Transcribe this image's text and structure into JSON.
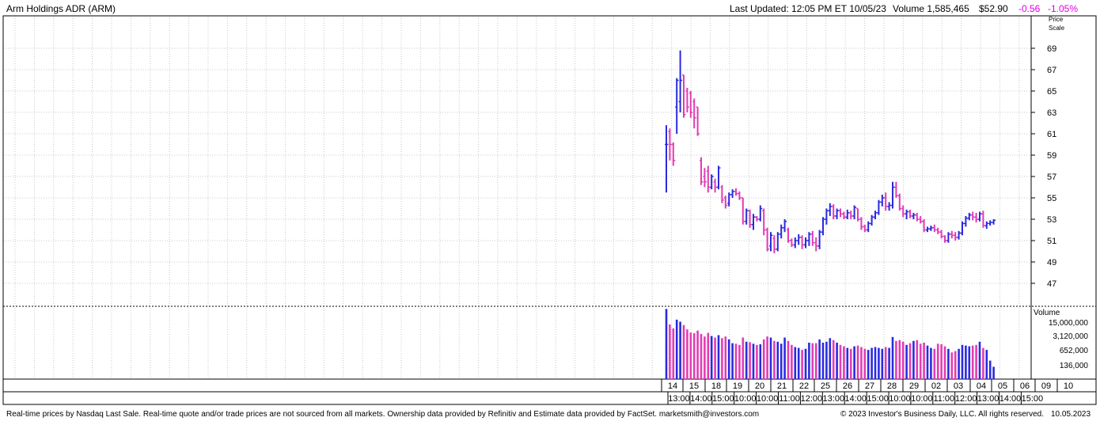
{
  "header": {
    "title": "Arm Holdings ADR  (ARM)",
    "last_updated": "Last Updated: 12:05 PM ET 10/05/23",
    "volume": "Volume 1,585,465",
    "price": "$52.90",
    "change": "-0.56",
    "change_pct": "-1.05%"
  },
  "price_scale_label": [
    "Price",
    "Scale"
  ],
  "volume_label": "Volume",
  "footer": {
    "left": "Real-time prices by Nasdaq Last Sale. Real-time quote and/or trade prices are not sourced from all markets. Ownership data provided by Refinitiv and Estimate data provided by FactSet. marketsmith@investors.com",
    "right": "© 2023 Investor's Business Daily, LLC. All rights reserved.",
    "date": "10.05.2023"
  },
  "colors": {
    "up": "#2a2ae0",
    "down": "#e23cb4",
    "grid": "#c8c8c8",
    "change_negative": "#e000e0"
  },
  "chart_data": {
    "type": "bar",
    "subtype": "ohlc-intraday",
    "price_ticks": [
      "69",
      "67",
      "65",
      "63",
      "61",
      "59",
      "57",
      "55",
      "53",
      "51",
      "49",
      "47"
    ],
    "price_range": [
      45,
      72
    ],
    "volume_ticks": [
      "15,000,000",
      "3,120,000",
      "652,000",
      "136,000"
    ],
    "volume_scale": "log",
    "volume_range": [
      15000,
      45000000
    ],
    "date_labels": [
      "14",
      "15",
      "18",
      "19",
      "20",
      "21",
      "22",
      "25",
      "26",
      "27",
      "28",
      "29",
      "02",
      "03",
      "04",
      "05",
      "06",
      "09",
      "10"
    ],
    "time_labels": [
      "13:00",
      "14:00",
      "15:00",
      "10:00",
      "10:00",
      "11:00",
      "12:00",
      "13:00",
      "14:00",
      "15:00",
      "10:00",
      "10:00",
      "11:00",
      "12:00",
      "13:00",
      "14:00",
      "15:00"
    ],
    "bars": [
      {
        "o": 60.0,
        "h": 61.8,
        "l": 55.5,
        "c": 60.0,
        "v": 40000000
      },
      {
        "o": 61.2,
        "h": 61.5,
        "l": 58.5,
        "c": 60.0,
        "v": 7000000
      },
      {
        "o": 60.0,
        "h": 60.2,
        "l": 58.0,
        "c": 58.5,
        "v": 4500000
      },
      {
        "o": 63.5,
        "h": 66.2,
        "l": 61.0,
        "c": 66.0,
        "v": 12000000
      },
      {
        "o": 64.0,
        "h": 68.8,
        "l": 63.0,
        "c": 66.0,
        "v": 9500000
      },
      {
        "o": 66.5,
        "h": 66.5,
        "l": 62.5,
        "c": 62.8,
        "v": 6500000
      },
      {
        "o": 65.0,
        "h": 65.3,
        "l": 63.0,
        "c": 63.5,
        "v": 4000000
      },
      {
        "o": 64.8,
        "h": 65.0,
        "l": 62.5,
        "c": 63.0,
        "v": 2800000
      },
      {
        "o": 64.0,
        "h": 64.3,
        "l": 61.5,
        "c": 62.5,
        "v": 2600000
      },
      {
        "o": 63.5,
        "h": 63.5,
        "l": 60.8,
        "c": 61.0,
        "v": 3500000
      },
      {
        "o": 58.5,
        "h": 58.8,
        "l": 56.2,
        "c": 56.5,
        "v": 2400000
      },
      {
        "o": 57.0,
        "h": 57.8,
        "l": 56.0,
        "c": 56.5,
        "v": 1800000
      },
      {
        "o": 57.5,
        "h": 58.0,
        "l": 55.5,
        "c": 56.0,
        "v": 2700000
      },
      {
        "o": 56.0,
        "h": 57.2,
        "l": 55.8,
        "c": 57.0,
        "v": 1900000
      },
      {
        "o": 56.5,
        "h": 56.8,
        "l": 55.5,
        "c": 56.0,
        "v": 1600000
      },
      {
        "o": 56.0,
        "h": 58.0,
        "l": 55.8,
        "c": 57.8,
        "v": 2100000
      },
      {
        "o": 56.0,
        "h": 56.2,
        "l": 54.5,
        "c": 54.8,
        "v": 1500000
      },
      {
        "o": 55.0,
        "h": 55.2,
        "l": 54.0,
        "c": 54.3,
        "v": 1800000
      },
      {
        "o": 54.5,
        "h": 55.5,
        "l": 54.2,
        "c": 55.3,
        "v": 1300000
      },
      {
        "o": 55.3,
        "h": 55.8,
        "l": 55.0,
        "c": 55.6,
        "v": 850000
      },
      {
        "o": 55.6,
        "h": 55.9,
        "l": 55.2,
        "c": 55.4,
        "v": 800000
      },
      {
        "o": 55.4,
        "h": 55.6,
        "l": 54.8,
        "c": 55.0,
        "v": 700000
      },
      {
        "o": 55.0,
        "h": 55.0,
        "l": 52.5,
        "c": 52.8,
        "v": 1600000
      },
      {
        "o": 52.8,
        "h": 54.0,
        "l": 52.5,
        "c": 53.8,
        "v": 1000000
      },
      {
        "o": 53.8,
        "h": 53.9,
        "l": 52.2,
        "c": 52.5,
        "v": 950000
      },
      {
        "o": 52.5,
        "h": 53.5,
        "l": 52.0,
        "c": 53.2,
        "v": 800000
      },
      {
        "o": 53.2,
        "h": 53.3,
        "l": 52.8,
        "c": 53.0,
        "v": 700000
      },
      {
        "o": 53.0,
        "h": 54.3,
        "l": 52.8,
        "c": 54.0,
        "v": 750000
      },
      {
        "o": 53.8,
        "h": 54.0,
        "l": 51.5,
        "c": 52.0,
        "v": 1300000
      },
      {
        "o": 52.0,
        "h": 52.2,
        "l": 50.0,
        "c": 50.2,
        "v": 1800000
      },
      {
        "o": 50.5,
        "h": 51.8,
        "l": 50.0,
        "c": 51.5,
        "v": 1600000
      },
      {
        "o": 51.2,
        "h": 51.5,
        "l": 49.8,
        "c": 50.2,
        "v": 1100000
      },
      {
        "o": 50.2,
        "h": 51.8,
        "l": 50.0,
        "c": 51.6,
        "v": 1000000
      },
      {
        "o": 51.6,
        "h": 52.5,
        "l": 51.2,
        "c": 52.2,
        "v": 800000
      },
      {
        "o": 52.2,
        "h": 53.0,
        "l": 51.8,
        "c": 52.8,
        "v": 1600000
      },
      {
        "o": 52.0,
        "h": 52.2,
        "l": 50.8,
        "c": 51.0,
        "v": 1100000
      },
      {
        "o": 51.0,
        "h": 51.2,
        "l": 50.4,
        "c": 50.6,
        "v": 700000
      },
      {
        "o": 50.6,
        "h": 51.3,
        "l": 50.3,
        "c": 51.0,
        "v": 550000
      },
      {
        "o": 51.0,
        "h": 51.6,
        "l": 50.6,
        "c": 51.3,
        "v": 500000
      },
      {
        "o": 51.3,
        "h": 51.5,
        "l": 50.2,
        "c": 50.6,
        "v": 400000
      },
      {
        "o": 50.6,
        "h": 51.3,
        "l": 50.3,
        "c": 51.0,
        "v": 450000
      },
      {
        "o": 51.0,
        "h": 51.8,
        "l": 50.5,
        "c": 51.6,
        "v": 900000
      },
      {
        "o": 51.6,
        "h": 51.9,
        "l": 50.5,
        "c": 50.8,
        "v": 850000
      },
      {
        "o": 50.8,
        "h": 51.3,
        "l": 50.0,
        "c": 50.5,
        "v": 850000
      },
      {
        "o": 50.5,
        "h": 52.0,
        "l": 50.2,
        "c": 51.8,
        "v": 1300000
      },
      {
        "o": 51.8,
        "h": 53.2,
        "l": 51.5,
        "c": 53.0,
        "v": 900000
      },
      {
        "o": 53.0,
        "h": 54.0,
        "l": 52.5,
        "c": 53.8,
        "v": 1000000
      },
      {
        "o": 53.8,
        "h": 54.5,
        "l": 53.3,
        "c": 54.2,
        "v": 1500000
      },
      {
        "o": 54.2,
        "h": 54.4,
        "l": 53.0,
        "c": 53.3,
        "v": 1200000
      },
      {
        "o": 53.3,
        "h": 54.0,
        "l": 53.0,
        "c": 53.8,
        "v": 900000
      },
      {
        "o": 53.8,
        "h": 54.0,
        "l": 53.2,
        "c": 53.5,
        "v": 700000
      },
      {
        "o": 53.5,
        "h": 53.7,
        "l": 53.0,
        "c": 53.2,
        "v": 600000
      },
      {
        "o": 53.2,
        "h": 53.9,
        "l": 53.0,
        "c": 53.6,
        "v": 500000
      },
      {
        "o": 53.6,
        "h": 53.8,
        "l": 53.0,
        "c": 53.3,
        "v": 450000
      },
      {
        "o": 53.3,
        "h": 54.3,
        "l": 53.0,
        "c": 54.1,
        "v": 600000
      },
      {
        "o": 54.0,
        "h": 54.0,
        "l": 52.8,
        "c": 53.0,
        "v": 650000
      },
      {
        "o": 53.0,
        "h": 53.2,
        "l": 52.0,
        "c": 52.3,
        "v": 550000
      },
      {
        "o": 52.3,
        "h": 52.5,
        "l": 51.8,
        "c": 52.0,
        "v": 450000
      },
      {
        "o": 52.0,
        "h": 52.8,
        "l": 51.8,
        "c": 52.6,
        "v": 400000
      },
      {
        "o": 52.6,
        "h": 53.4,
        "l": 52.4,
        "c": 53.2,
        "v": 500000
      },
      {
        "o": 53.2,
        "h": 53.8,
        "l": 53.0,
        "c": 53.6,
        "v": 550000
      },
      {
        "o": 53.6,
        "h": 54.8,
        "l": 53.4,
        "c": 54.6,
        "v": 500000
      },
      {
        "o": 54.6,
        "h": 55.3,
        "l": 54.2,
        "c": 55.0,
        "v": 450000
      },
      {
        "o": 55.0,
        "h": 55.5,
        "l": 53.8,
        "c": 54.2,
        "v": 550000
      },
      {
        "o": 54.2,
        "h": 54.6,
        "l": 53.8,
        "c": 54.3,
        "v": 500000
      },
      {
        "o": 54.3,
        "h": 56.5,
        "l": 54.0,
        "c": 56.0,
        "v": 1700000
      },
      {
        "o": 56.0,
        "h": 56.5,
        "l": 55.0,
        "c": 55.2,
        "v": 1100000
      },
      {
        "o": 55.2,
        "h": 55.4,
        "l": 53.8,
        "c": 54.0,
        "v": 1200000
      },
      {
        "o": 54.0,
        "h": 54.3,
        "l": 53.2,
        "c": 53.5,
        "v": 1000000
      },
      {
        "o": 53.5,
        "h": 53.9,
        "l": 53.0,
        "c": 53.7,
        "v": 700000
      },
      {
        "o": 53.7,
        "h": 53.9,
        "l": 53.1,
        "c": 53.3,
        "v": 850000
      },
      {
        "o": 53.3,
        "h": 53.6,
        "l": 53.0,
        "c": 53.4,
        "v": 1100000
      },
      {
        "o": 53.4,
        "h": 53.6,
        "l": 52.8,
        "c": 53.0,
        "v": 1200000
      },
      {
        "o": 53.0,
        "h": 53.3,
        "l": 52.6,
        "c": 52.8,
        "v": 800000
      },
      {
        "o": 52.8,
        "h": 53.0,
        "l": 51.8,
        "c": 52.0,
        "v": 900000
      },
      {
        "o": 52.0,
        "h": 52.3,
        "l": 51.8,
        "c": 52.1,
        "v": 650000
      },
      {
        "o": 52.1,
        "h": 52.4,
        "l": 51.9,
        "c": 52.2,
        "v": 500000
      },
      {
        "o": 52.2,
        "h": 52.5,
        "l": 51.8,
        "c": 52.0,
        "v": 450000
      },
      {
        "o": 52.0,
        "h": 52.2,
        "l": 51.6,
        "c": 51.8,
        "v": 800000
      },
      {
        "o": 51.8,
        "h": 52.0,
        "l": 51.2,
        "c": 51.4,
        "v": 750000
      },
      {
        "o": 51.4,
        "h": 51.5,
        "l": 50.8,
        "c": 51.0,
        "v": 600000
      },
      {
        "o": 51.0,
        "h": 51.8,
        "l": 50.8,
        "c": 51.6,
        "v": 450000
      },
      {
        "o": 51.6,
        "h": 51.9,
        "l": 51.2,
        "c": 51.5,
        "v": 300000
      },
      {
        "o": 51.5,
        "h": 51.8,
        "l": 51.0,
        "c": 51.3,
        "v": 350000
      },
      {
        "o": 51.3,
        "h": 51.9,
        "l": 51.1,
        "c": 51.7,
        "v": 450000
      },
      {
        "o": 51.7,
        "h": 52.8,
        "l": 51.5,
        "c": 52.6,
        "v": 700000
      },
      {
        "o": 52.6,
        "h": 53.3,
        "l": 52.3,
        "c": 53.1,
        "v": 650000
      },
      {
        "o": 53.1,
        "h": 53.6,
        "l": 52.9,
        "c": 53.4,
        "v": 600000
      },
      {
        "o": 53.4,
        "h": 53.7,
        "l": 52.9,
        "c": 53.2,
        "v": 650000
      },
      {
        "o": 53.2,
        "h": 53.6,
        "l": 52.7,
        "c": 53.0,
        "v": 700000
      },
      {
        "o": 53.0,
        "h": 53.7,
        "l": 52.8,
        "c": 53.5,
        "v": 1000000
      },
      {
        "o": 53.5,
        "h": 53.8,
        "l": 52.2,
        "c": 52.4,
        "v": 500000
      },
      {
        "o": 52.4,
        "h": 52.8,
        "l": 52.1,
        "c": 52.6,
        "v": 400000
      },
      {
        "o": 52.6,
        "h": 52.9,
        "l": 52.4,
        "c": 52.7,
        "v": 120000
      },
      {
        "o": 52.7,
        "h": 53.0,
        "l": 52.5,
        "c": 52.9,
        "v": 60000
      }
    ]
  }
}
